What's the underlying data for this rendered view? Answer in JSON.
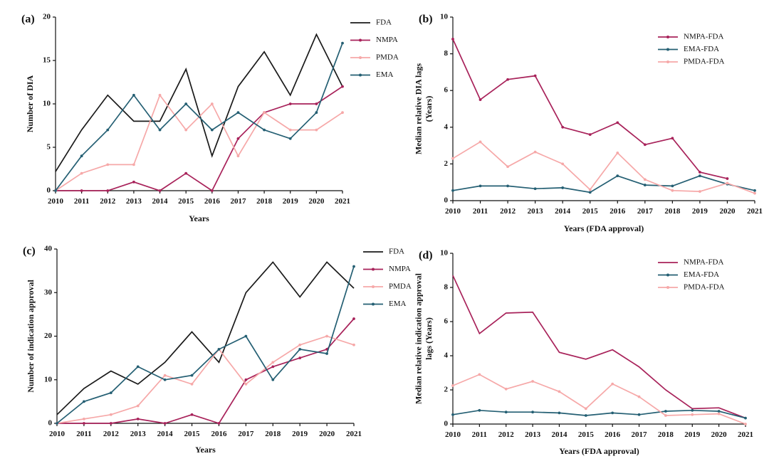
{
  "chart_data": [
    {
      "id": "a",
      "panel_label": "(a)",
      "type": "line",
      "xlabel": "Years",
      "ylabel": "Number of DIA",
      "x": [
        "2010",
        "2011",
        "2012",
        "2013",
        "2014",
        "2015",
        "2016",
        "2017",
        "2018",
        "2019",
        "2020",
        "2021"
      ],
      "ylim": [
        0,
        20
      ],
      "yticks": [
        "0",
        "5",
        "10",
        "15",
        "20"
      ],
      "legend_position": "top-right",
      "series": [
        {
          "name": "FDA",
          "color": "#1a1a1a",
          "marker": "none",
          "values": [
            2.2,
            7,
            11,
            8,
            8,
            14,
            4,
            12,
            16,
            11,
            18,
            12
          ]
        },
        {
          "name": "NMPA",
          "color": "#a8225a",
          "marker": "dot",
          "values": [
            0,
            0,
            0,
            1,
            0,
            2,
            0,
            6,
            9,
            10,
            10,
            12
          ]
        },
        {
          "name": "PMDA",
          "color": "#f6a8a8",
          "marker": "dot",
          "values": [
            0,
            2,
            3,
            3,
            11,
            7,
            10,
            4,
            9,
            7,
            7,
            9
          ]
        },
        {
          "name": "EMA",
          "color": "#245f73",
          "marker": "dot",
          "values": [
            0,
            4,
            7,
            11,
            7,
            10,
            7,
            9,
            7,
            6,
            9,
            17
          ]
        }
      ]
    },
    {
      "id": "b",
      "panel_label": "(b)",
      "type": "line",
      "xlabel": "Years (FDA approval)",
      "ylabel": "Median relative DIA lags (Years)",
      "x": [
        "2010",
        "2011",
        "2012",
        "2013",
        "2014",
        "2015",
        "2016",
        "2017",
        "2018",
        "2019",
        "2020",
        "2021"
      ],
      "ylim": [
        0,
        10
      ],
      "yticks": [
        "0",
        "2",
        "4",
        "6",
        "8",
        "10"
      ],
      "legend_position": "top-right",
      "series": [
        {
          "name": "NMPA-FDA",
          "color": "#a8225a",
          "marker": "dot",
          "values": [
            8.8,
            5.5,
            6.6,
            6.8,
            4.0,
            3.6,
            4.25,
            3.05,
            3.4,
            1.55,
            1.2,
            null
          ]
        },
        {
          "name": "EMA-FDA",
          "color": "#245f73",
          "marker": "dot",
          "values": [
            0.55,
            0.8,
            0.8,
            0.65,
            0.7,
            0.45,
            1.35,
            0.85,
            0.8,
            1.35,
            0.9,
            0.55
          ]
        },
        {
          "name": "PMDA-FDA",
          "color": "#f6a8a8",
          "marker": "dot",
          "values": [
            2.3,
            3.2,
            1.85,
            2.65,
            2.0,
            0.6,
            2.6,
            1.15,
            0.55,
            0.5,
            0.95,
            0.4
          ]
        }
      ]
    },
    {
      "id": "c",
      "panel_label": "(c)",
      "type": "line",
      "xlabel": "Years",
      "ylabel": "Number of indication approval",
      "x": [
        "2010",
        "2011",
        "2012",
        "2013",
        "2014",
        "2015",
        "2016",
        "2017",
        "2018",
        "2019",
        "2020",
        "2021"
      ],
      "ylim": [
        0,
        40
      ],
      "yticks": [
        "0",
        "10",
        "20",
        "30",
        "40"
      ],
      "legend_position": "top-right",
      "series": [
        {
          "name": "FDA",
          "color": "#1a1a1a",
          "marker": "none",
          "values": [
            2,
            8,
            12,
            9,
            14,
            21,
            14,
            30,
            37,
            29,
            37,
            31
          ]
        },
        {
          "name": "NMPA",
          "color": "#a8225a",
          "marker": "dot",
          "values": [
            0,
            0,
            0,
            1,
            0,
            2,
            0,
            10,
            13,
            15,
            17,
            24
          ]
        },
        {
          "name": "PMDA",
          "color": "#f6a8a8",
          "marker": "dot",
          "values": [
            0,
            1,
            2,
            4,
            11,
            9,
            17,
            9,
            14,
            18,
            20,
            18
          ]
        },
        {
          "name": "EMA",
          "color": "#245f73",
          "marker": "dot",
          "values": [
            0,
            5,
            7,
            13,
            10,
            11,
            17,
            20,
            10,
            17,
            16,
            36
          ]
        }
      ]
    },
    {
      "id": "d",
      "panel_label": "(d)",
      "type": "line",
      "xlabel": "Years (FDA approval)",
      "ylabel": "Median relative indication approval lags (Years)",
      "x": [
        "2010",
        "2011",
        "2012",
        "2013",
        "2014",
        "2015",
        "2016",
        "2017",
        "2018",
        "2019",
        "2020",
        "2021"
      ],
      "ylim": [
        0,
        10
      ],
      "yticks": [
        "0",
        "2",
        "4",
        "6",
        "8",
        "10"
      ],
      "legend_position": "top-right",
      "series": [
        {
          "name": "NMPA-FDA",
          "color": "#a8225a",
          "marker": "none",
          "values": [
            8.7,
            5.3,
            6.5,
            6.55,
            4.2,
            3.8,
            4.35,
            3.35,
            2.0,
            0.9,
            0.95,
            0.35
          ]
        },
        {
          "name": "EMA-FDA",
          "color": "#245f73",
          "marker": "dot",
          "values": [
            0.55,
            0.8,
            0.7,
            0.7,
            0.65,
            0.5,
            0.65,
            0.55,
            0.75,
            0.8,
            0.75,
            0.35
          ]
        },
        {
          "name": "PMDA-FDA",
          "color": "#f6a8a8",
          "marker": "dot",
          "values": [
            2.25,
            2.9,
            2.05,
            2.5,
            1.9,
            0.9,
            2.35,
            1.6,
            0.5,
            0.55,
            0.6,
            0.0
          ]
        }
      ]
    }
  ]
}
